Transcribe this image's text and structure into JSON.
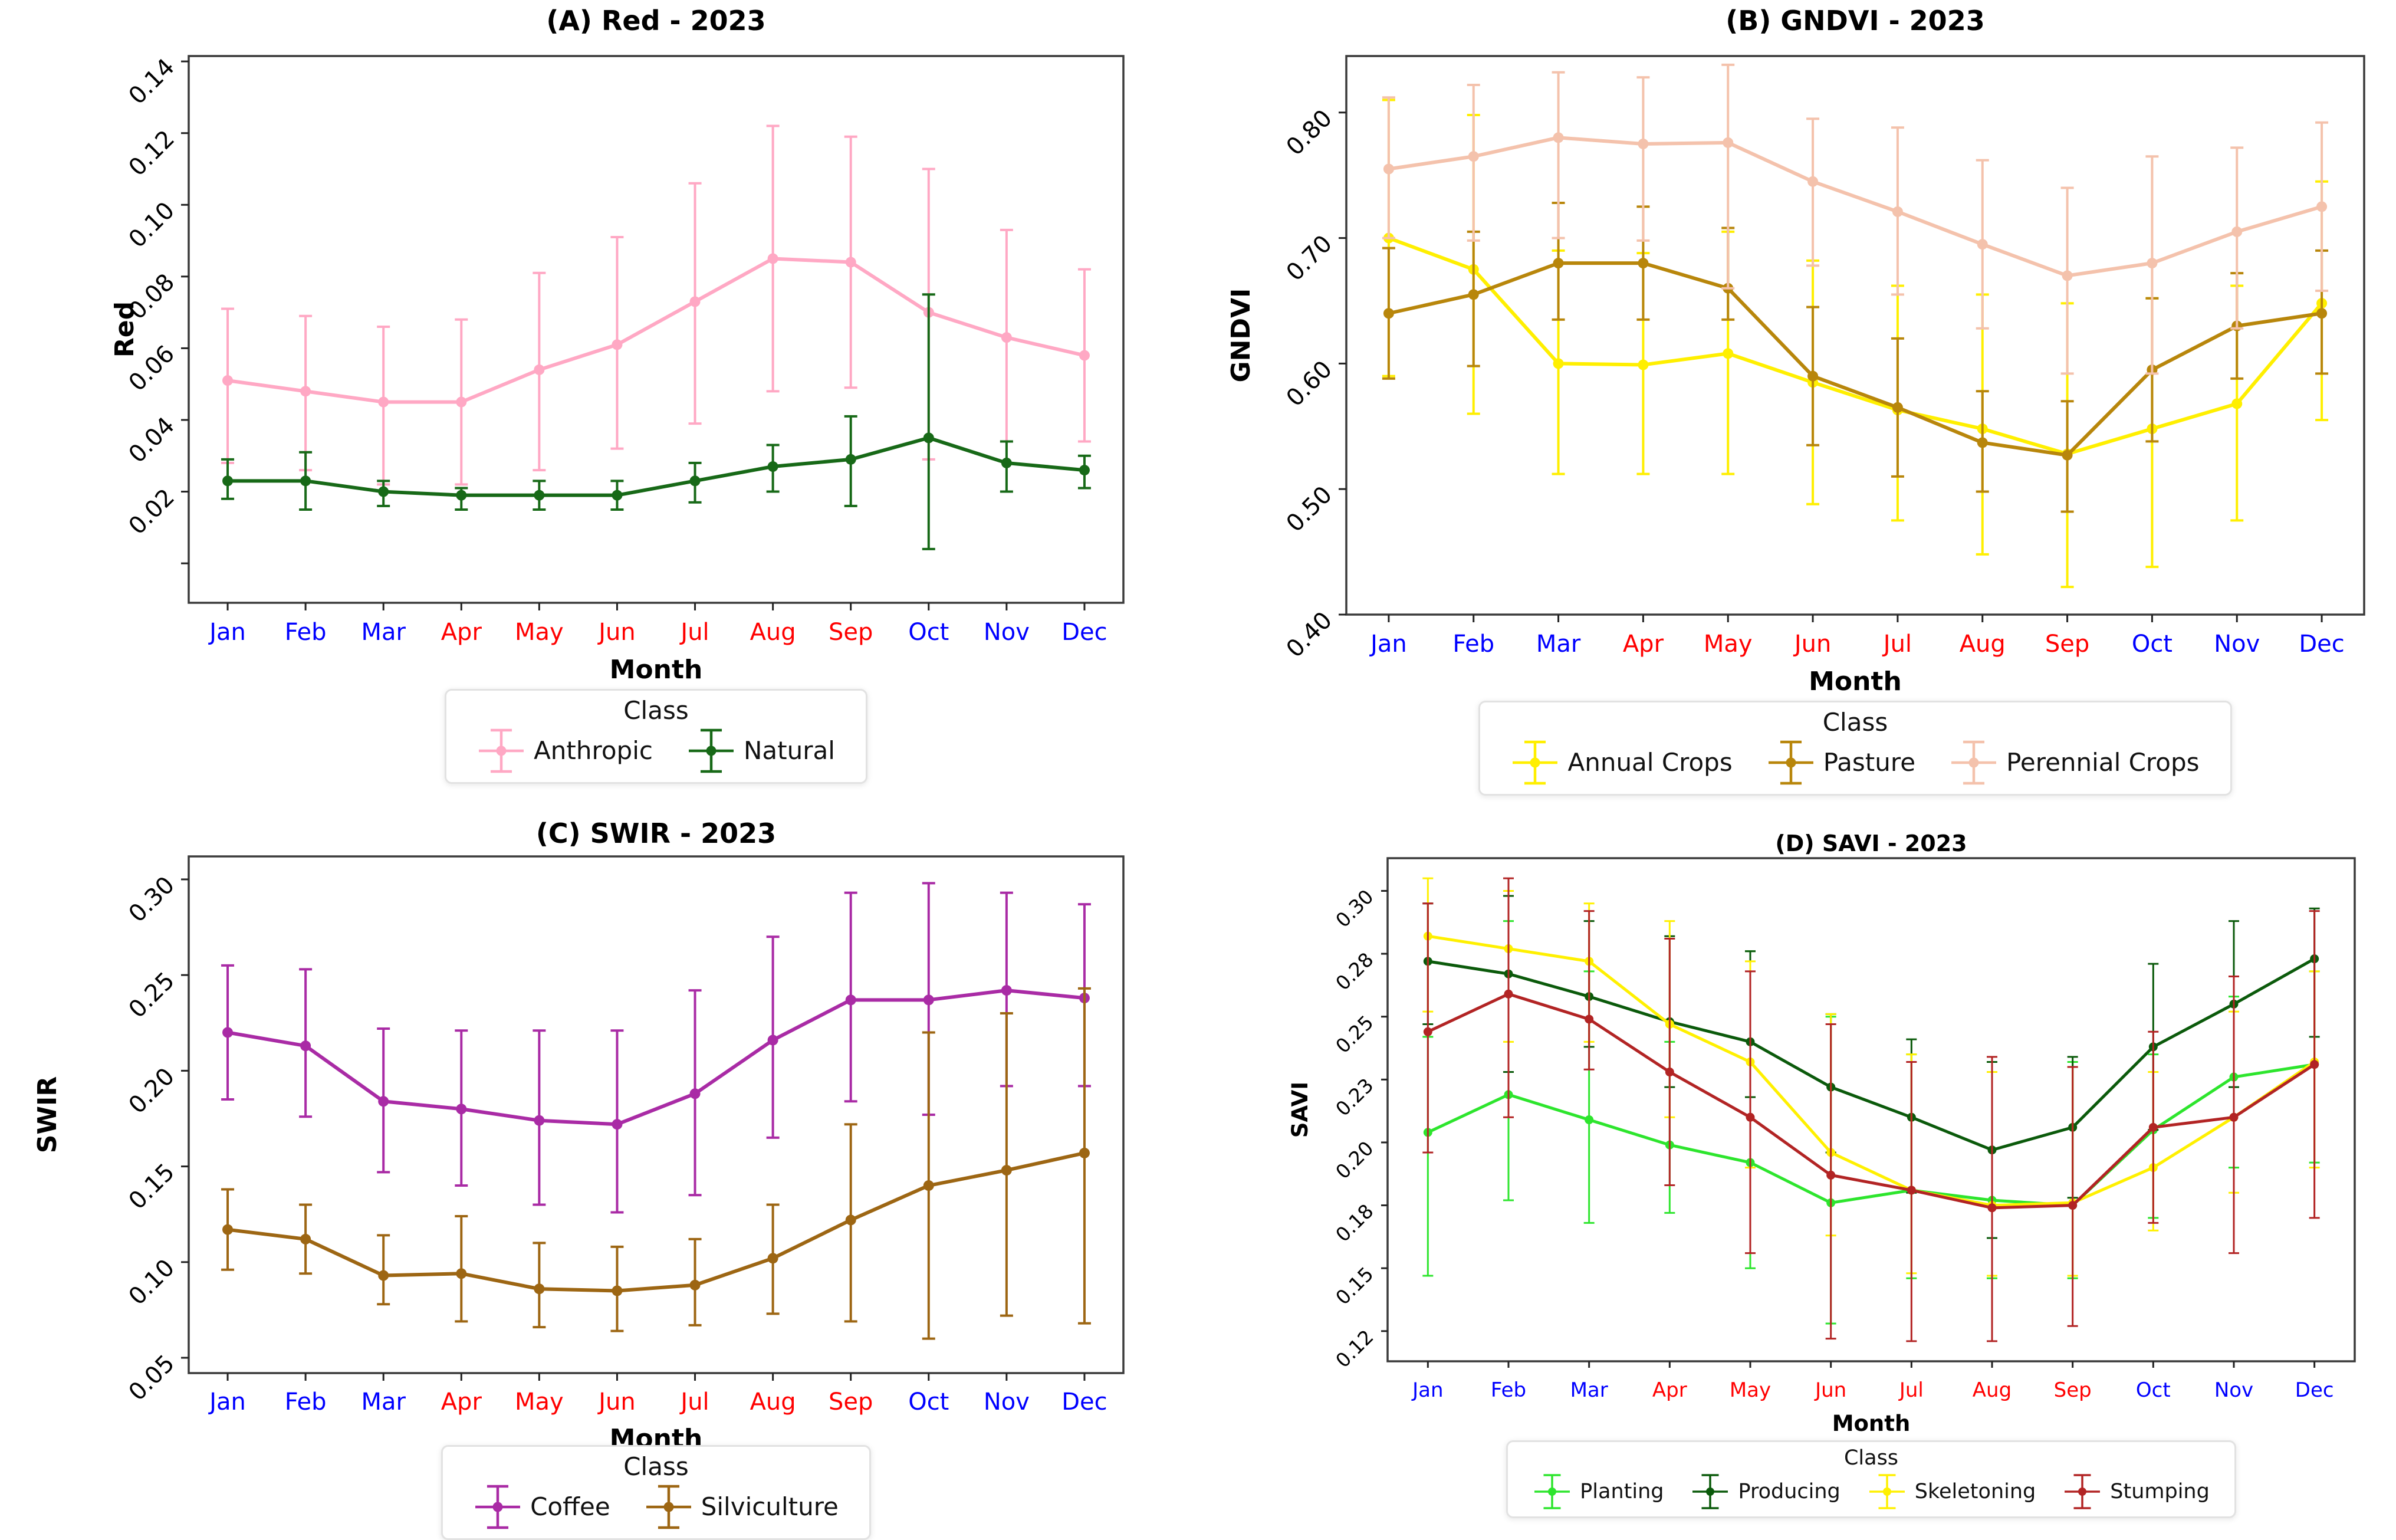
{
  "chart_data": [
    {
      "id": "A",
      "type": "line",
      "title": "(A) Red - 2023",
      "xlabel": "Month",
      "ylabel": "Red",
      "legend_title": "Class",
      "legend_position": "below",
      "grid": false,
      "categories": [
        "Jan",
        "Feb",
        "Mar",
        "Apr",
        "May",
        "Jun",
        "Jul",
        "Aug",
        "Sep",
        "Oct",
        "Nov",
        "Dec"
      ],
      "month_label_colors": [
        "#0000FF",
        "#0000FF",
        "#0000FF",
        "#FF0000",
        "#FF0000",
        "#FF0000",
        "#FF0000",
        "#FF0000",
        "#FF0000",
        "#0000FF",
        "#0000FF",
        "#0000FF"
      ],
      "ylim": [
        -0.011,
        0.1415
      ],
      "yticks": [
        {
          "value": 0.0,
          "label": ""
        },
        {
          "value": 0.02,
          "label": "0.02"
        },
        {
          "value": 0.04,
          "label": "0.04"
        },
        {
          "value": 0.06,
          "label": "0.06"
        },
        {
          "value": 0.08,
          "label": "0.08"
        },
        {
          "value": 0.1,
          "label": "0.10"
        },
        {
          "value": 0.12,
          "label": "0.12"
        },
        {
          "value": 0.14,
          "label": "0.14"
        }
      ],
      "series": [
        {
          "name": "Anthropic",
          "color": "#FFA8C4",
          "means": [
            0.051,
            0.048,
            0.045,
            0.045,
            0.054,
            0.061,
            0.073,
            0.085,
            0.084,
            0.07,
            0.063,
            0.058
          ],
          "err_lo": [
            0.028,
            0.026,
            0.022,
            0.022,
            0.026,
            0.032,
            0.039,
            0.048,
            0.049,
            0.029,
            0.034,
            0.034
          ],
          "err_hi": [
            0.071,
            0.069,
            0.066,
            0.068,
            0.081,
            0.091,
            0.106,
            0.122,
            0.119,
            0.11,
            0.093,
            0.082
          ]
        },
        {
          "name": "Natural",
          "color": "#176917",
          "means": [
            0.023,
            0.023,
            0.02,
            0.019,
            0.019,
            0.019,
            0.023,
            0.027,
            0.029,
            0.035,
            0.028,
            0.026
          ],
          "err_lo": [
            0.018,
            0.015,
            0.016,
            0.015,
            0.015,
            0.015,
            0.017,
            0.02,
            0.016,
            0.004,
            0.02,
            0.021
          ],
          "err_hi": [
            0.029,
            0.031,
            0.023,
            0.021,
            0.023,
            0.023,
            0.028,
            0.033,
            0.041,
            0.075,
            0.034,
            0.03
          ]
        }
      ]
    },
    {
      "id": "B",
      "type": "line",
      "title": "(B) GNDVI - 2023",
      "xlabel": "Month",
      "ylabel": "GNDVI",
      "legend_title": "Class",
      "legend_position": "below",
      "grid": false,
      "categories": [
        "Jan",
        "Feb",
        "Mar",
        "Apr",
        "May",
        "Jun",
        "Jul",
        "Aug",
        "Sep",
        "Oct",
        "Nov",
        "Dec"
      ],
      "month_label_colors": [
        "#0000FF",
        "#0000FF",
        "#0000FF",
        "#FF0000",
        "#FF0000",
        "#FF0000",
        "#FF0000",
        "#FF0000",
        "#FF0000",
        "#0000FF",
        "#0000FF",
        "#0000FF"
      ],
      "ylim": [
        0.4,
        0.845
      ],
      "yticks": [
        {
          "value": 0.4,
          "label": "0.40"
        },
        {
          "value": 0.5,
          "label": "0.50"
        },
        {
          "value": 0.6,
          "label": "0.60"
        },
        {
          "value": 0.7,
          "label": "0.70"
        },
        {
          "value": 0.8,
          "label": "0.80"
        }
      ],
      "series": [
        {
          "name": "Annual Crops",
          "color": "#FFEF00",
          "means": [
            0.7,
            0.675,
            0.6,
            0.599,
            0.608,
            0.585,
            0.563,
            0.548,
            0.528,
            0.548,
            0.568,
            0.648
          ],
          "err_lo": [
            0.59,
            0.56,
            0.512,
            0.512,
            0.512,
            0.488,
            0.475,
            0.448,
            0.422,
            0.438,
            0.475,
            0.555
          ],
          "err_hi": [
            0.81,
            0.798,
            0.69,
            0.688,
            0.705,
            0.682,
            0.662,
            0.655,
            0.648,
            0.652,
            0.662,
            0.745
          ]
        },
        {
          "name": "Pasture",
          "color": "#B8860B",
          "means": [
            0.64,
            0.655,
            0.68,
            0.68,
            0.66,
            0.59,
            0.565,
            0.537,
            0.527,
            0.595,
            0.63,
            0.64
          ],
          "err_lo": [
            0.588,
            0.598,
            0.635,
            0.635,
            0.635,
            0.535,
            0.51,
            0.498,
            0.482,
            0.538,
            0.588,
            0.592
          ],
          "err_hi": [
            0.692,
            0.705,
            0.728,
            0.725,
            0.708,
            0.645,
            0.62,
            0.578,
            0.57,
            0.652,
            0.672,
            0.69
          ]
        },
        {
          "name": "Perennial Crops",
          "color": "#F4C2AC",
          "means": [
            0.755,
            0.765,
            0.78,
            0.775,
            0.776,
            0.745,
            0.721,
            0.695,
            0.67,
            0.68,
            0.705,
            0.725
          ],
          "err_lo": [
            0.7,
            0.698,
            0.7,
            0.698,
            0.66,
            0.678,
            0.655,
            0.628,
            0.592,
            0.592,
            0.628,
            0.658
          ],
          "err_hi": [
            0.812,
            0.822,
            0.832,
            0.828,
            0.838,
            0.795,
            0.788,
            0.762,
            0.74,
            0.765,
            0.772,
            0.792
          ]
        }
      ]
    },
    {
      "id": "C",
      "type": "line",
      "title": "(C) SWIR - 2023",
      "xlabel": "Month",
      "ylabel": "SWIR",
      "legend_title": "Class",
      "legend_position": "below",
      "grid": false,
      "categories": [
        "Jan",
        "Feb",
        "Mar",
        "Apr",
        "May",
        "Jun",
        "Jul",
        "Aug",
        "Sep",
        "Oct",
        "Nov",
        "Dec"
      ],
      "month_label_colors": [
        "#0000FF",
        "#0000FF",
        "#0000FF",
        "#FF0000",
        "#FF0000",
        "#FF0000",
        "#FF0000",
        "#FF0000",
        "#FF0000",
        "#0000FF",
        "#0000FF",
        "#0000FF"
      ],
      "ylim": [
        0.042,
        0.312
      ],
      "yticks": [
        {
          "value": 0.05,
          "label": "0.05"
        },
        {
          "value": 0.1,
          "label": "0.10"
        },
        {
          "value": 0.15,
          "label": "0.15"
        },
        {
          "value": 0.2,
          "label": "0.20"
        },
        {
          "value": 0.25,
          "label": "0.25"
        },
        {
          "value": 0.3,
          "label": "0.30"
        }
      ],
      "series": [
        {
          "name": "Coffee",
          "color": "#A92BA5",
          "means": [
            0.22,
            0.213,
            0.184,
            0.18,
            0.174,
            0.172,
            0.188,
            0.216,
            0.237,
            0.237,
            0.242,
            0.238
          ],
          "err_lo": [
            0.185,
            0.176,
            0.147,
            0.14,
            0.13,
            0.126,
            0.135,
            0.165,
            0.184,
            0.177,
            0.192,
            0.192
          ],
          "err_hi": [
            0.255,
            0.253,
            0.222,
            0.221,
            0.221,
            0.221,
            0.242,
            0.27,
            0.293,
            0.298,
            0.293,
            0.287
          ]
        },
        {
          "name": "Silviculture",
          "color": "#9D6613",
          "means": [
            0.117,
            0.112,
            0.093,
            0.094,
            0.086,
            0.085,
            0.088,
            0.102,
            0.122,
            0.14,
            0.148,
            0.157
          ],
          "err_lo": [
            0.096,
            0.094,
            0.078,
            0.069,
            0.066,
            0.064,
            0.067,
            0.073,
            0.069,
            0.06,
            0.072,
            0.068
          ],
          "err_hi": [
            0.138,
            0.13,
            0.114,
            0.124,
            0.11,
            0.108,
            0.112,
            0.13,
            0.172,
            0.22,
            0.23,
            0.243
          ]
        }
      ]
    },
    {
      "id": "D",
      "type": "line",
      "title": "(D) SAVI - 2023",
      "xlabel": "Month",
      "ylabel": "SAVI",
      "legend_title": "Class",
      "legend_position": "below",
      "grid": false,
      "categories": [
        "Jan",
        "Feb",
        "Mar",
        "Apr",
        "May",
        "Jun",
        "Jul",
        "Aug",
        "Sep",
        "Oct",
        "Nov",
        "Dec"
      ],
      "month_label_colors": [
        "#0000FF",
        "#0000FF",
        "#0000FF",
        "#FF0000",
        "#FF0000",
        "#FF0000",
        "#FF0000",
        "#FF0000",
        "#FF0000",
        "#0000FF",
        "#0000FF",
        "#0000FF"
      ],
      "ylim": [
        0.113,
        0.313
      ],
      "yticks": [
        {
          "value": 0.125,
          "label": "0.12"
        },
        {
          "value": 0.15,
          "label": "0.15"
        },
        {
          "value": 0.175,
          "label": "0.18"
        },
        {
          "value": 0.2,
          "label": "0.20"
        },
        {
          "value": 0.225,
          "label": "0.23"
        },
        {
          "value": 0.25,
          "label": "0.25"
        },
        {
          "value": 0.275,
          "label": "0.28"
        },
        {
          "value": 0.3,
          "label": "0.30"
        }
      ],
      "series": [
        {
          "name": "Planting",
          "color": "#2DE52D",
          "means": [
            0.204,
            0.219,
            0.209,
            0.199,
            0.192,
            0.176,
            0.181,
            0.177,
            0.175,
            0.205,
            0.226,
            0.231
          ],
          "err_lo": [
            0.147,
            0.177,
            0.168,
            0.172,
            0.15,
            0.128,
            0.146,
            0.146,
            0.146,
            0.17,
            0.19,
            0.192
          ],
          "err_hi": [
            0.242,
            0.288,
            0.268,
            0.24,
            0.276,
            0.25,
            0.235,
            0.228,
            0.232,
            0.235,
            0.258,
            0.268
          ]
        },
        {
          "name": "Producing",
          "color": "#0B5A0B",
          "means": [
            0.272,
            0.267,
            0.258,
            0.248,
            0.24,
            0.222,
            0.21,
            0.197,
            0.206,
            0.238,
            0.255,
            0.273
          ],
          "err_lo": [
            0.247,
            0.228,
            0.238,
            0.222,
            0.218,
            0.196,
            0.18,
            0.162,
            0.178,
            0.205,
            0.222,
            0.242
          ],
          "err_hi": [
            0.295,
            0.298,
            0.288,
            0.282,
            0.276,
            0.251,
            0.241,
            0.232,
            0.234,
            0.271,
            0.288,
            0.293
          ]
        },
        {
          "name": "Skeletoning",
          "color": "#FFF000",
          "means": [
            0.282,
            0.277,
            0.272,
            0.247,
            0.232,
            0.196,
            0.181,
            0.175,
            0.176,
            0.19,
            0.21,
            0.232
          ],
          "err_lo": [
            0.252,
            0.24,
            0.24,
            0.21,
            0.19,
            0.163,
            0.148,
            0.147,
            0.147,
            0.165,
            0.18,
            0.19
          ],
          "err_hi": [
            0.305,
            0.3,
            0.295,
            0.288,
            0.272,
            0.251,
            0.235,
            0.228,
            0.23,
            0.228,
            0.252,
            0.268
          ]
        },
        {
          "name": "Stumping",
          "color": "#B22424",
          "means": [
            0.244,
            0.259,
            0.249,
            0.228,
            0.21,
            0.187,
            0.181,
            0.174,
            0.175,
            0.206,
            0.21,
            0.231
          ],
          "err_lo": [
            0.196,
            0.21,
            0.229,
            0.183,
            0.156,
            0.122,
            0.121,
            0.121,
            0.127,
            0.168,
            0.156,
            0.17
          ],
          "err_hi": [
            0.295,
            0.305,
            0.292,
            0.281,
            0.268,
            0.247,
            0.232,
            0.234,
            0.23,
            0.244,
            0.266,
            0.292
          ]
        }
      ]
    }
  ]
}
